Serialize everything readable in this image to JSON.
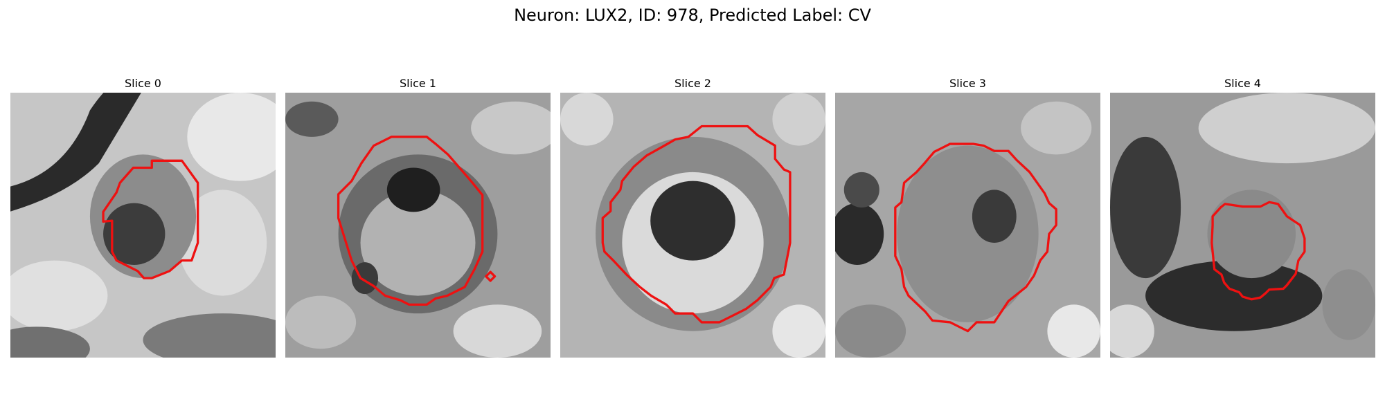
{
  "figure": {
    "title": "Neuron: LUX2, ID: 978, Predicted Label: CV"
  },
  "contour_color": "#ee1111",
  "slices": [
    {
      "title": "Slice 0"
    },
    {
      "title": "Slice 1"
    },
    {
      "title": "Slice 2"
    },
    {
      "title": "Slice 3"
    },
    {
      "title": "Slice 4"
    }
  ]
}
